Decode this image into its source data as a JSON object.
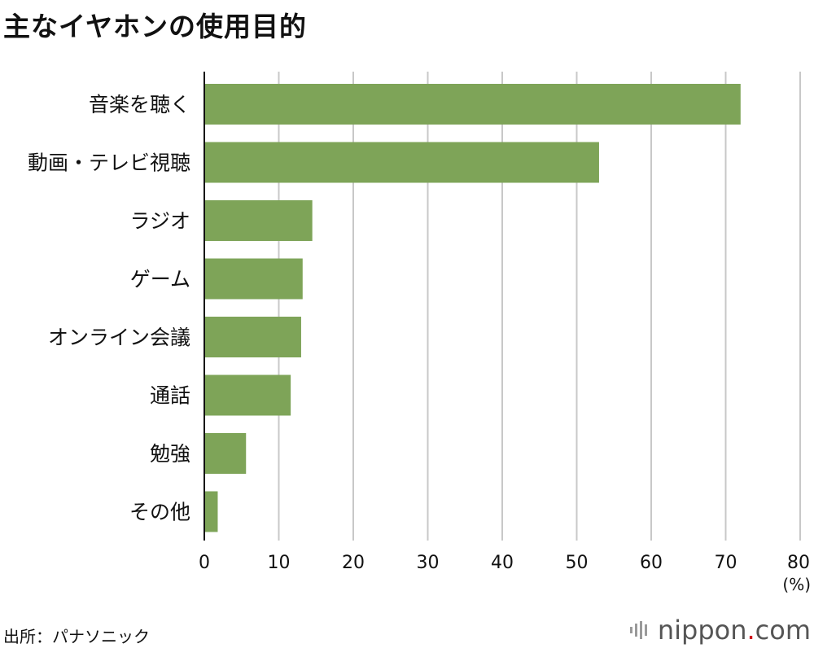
{
  "title": "主なイヤホンの使用目的",
  "source": "出所：パナソニック",
  "brand": {
    "name_pre": "nippon",
    "name_dot": ".",
    "name_post": "com",
    "accent_color": "#d0021b"
  },
  "colors": {
    "bar": "#7ea458",
    "grid": "#c8c8c8",
    "axis": "#111111"
  },
  "chart_data": {
    "type": "bar",
    "orientation": "horizontal",
    "categories": [
      "音楽を聴く",
      "動画・テレビ視聴",
      "ラジオ",
      "ゲーム",
      "オンライン会議",
      "通話",
      "勉強",
      "その他"
    ],
    "values": [
      72,
      53,
      14.5,
      13.2,
      13,
      11.6,
      5.6,
      1.8
    ],
    "xlim": [
      0,
      80
    ],
    "ticks": [
      0,
      10,
      20,
      30,
      40,
      50,
      60,
      70,
      80
    ],
    "unit": "(%)",
    "grid": true
  }
}
